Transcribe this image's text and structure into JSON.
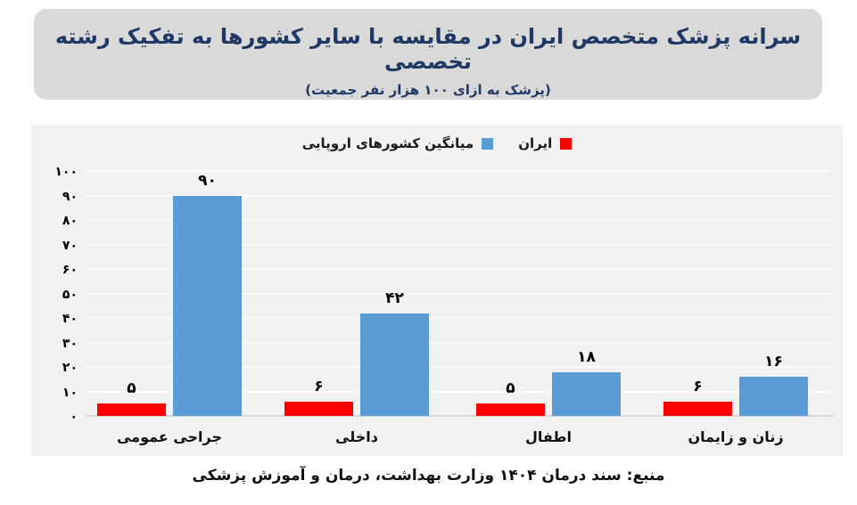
{
  "header": {
    "title": "سرانه پزشک متخصص ایران در مقایسه با سایر کشورها به تفکیک رشته تخصصی",
    "subtitle": "(پزشک به ازای ۱۰۰ هزار نفر جمعیت)",
    "title_color": "#1f3864",
    "box_color": "#d9d9d9"
  },
  "chart_data": {
    "type": "bar",
    "title": "سرانه پزشک متخصص ایران در مقایسه با سایر کشورها به تفکیک رشته تخصصی",
    "subtitle": "(پزشک به ازای ۱۰۰ هزار نفر جمعیت)",
    "categories": [
      "جراحی عمومی",
      "داخلی",
      "اطفال",
      "زنان و زایمان"
    ],
    "series": [
      {
        "name": "ایران",
        "color": "#ff0000",
        "values": [
          5,
          6,
          5,
          6
        ],
        "display": [
          "۵",
          "۶",
          "۵",
          "۶"
        ]
      },
      {
        "name": "میانگین کشورهای اروپایی",
        "color": "#5b9bd5",
        "values": [
          90,
          42,
          18,
          16
        ],
        "display": [
          "۹۰",
          "۴۲",
          "۱۸",
          "۱۶"
        ]
      }
    ],
    "y_ticks": [
      {
        "v": 100,
        "label": "۱۰۰"
      },
      {
        "v": 90,
        "label": "۹۰"
      },
      {
        "v": 80,
        "label": "۸۰"
      },
      {
        "v": 70,
        "label": "۷۰"
      },
      {
        "v": 60,
        "label": "۶۰"
      },
      {
        "v": 50,
        "label": "۵۰"
      },
      {
        "v": 40,
        "label": "۴۰"
      },
      {
        "v": 30,
        "label": "۳۰"
      },
      {
        "v": 20,
        "label": "۲۰"
      },
      {
        "v": 10,
        "label": "۱۰"
      },
      {
        "v": 0,
        "label": "۰"
      }
    ],
    "ylim": [
      0,
      100
    ],
    "grid": true,
    "legend_position": "top-center",
    "panel_color": "#f2f2f2"
  },
  "footer": {
    "source": "منبع: سند درمان ۱۴۰۴ وزارت بهداشت، درمان و آموزش پزشکی"
  }
}
